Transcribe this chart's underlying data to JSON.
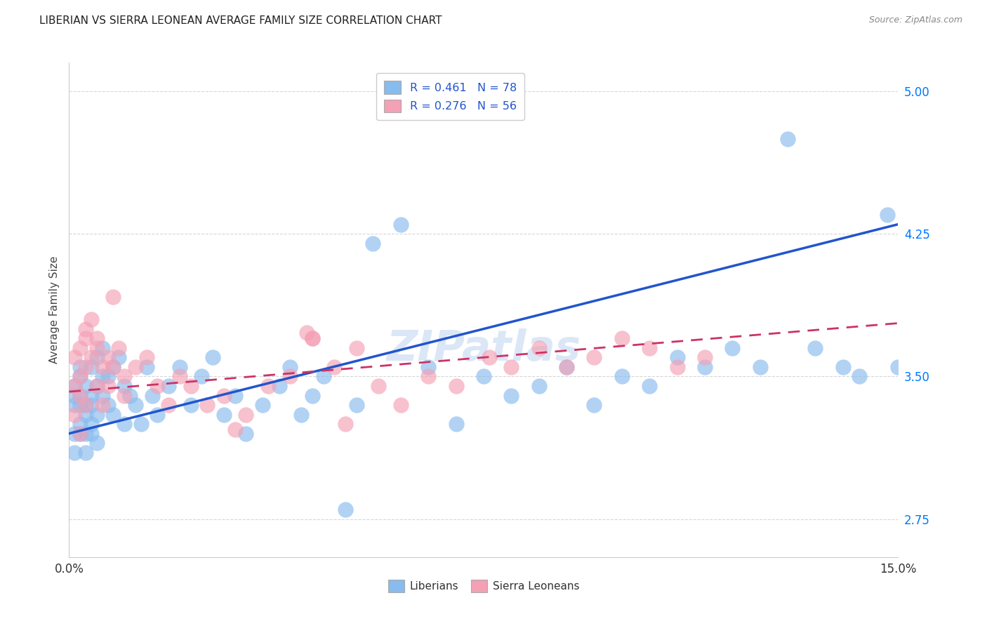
{
  "title": "LIBERIAN VS SIERRA LEONEAN AVERAGE FAMILY SIZE CORRELATION CHART",
  "source": "Source: ZipAtlas.com",
  "ylabel": "Average Family Size",
  "xlim": [
    0.0,
    0.15
  ],
  "ylim": [
    2.55,
    5.15
  ],
  "yticks": [
    2.75,
    3.5,
    4.25,
    5.0
  ],
  "ytick_color": "#0077ff",
  "watermark": "ZIPatlas",
  "liberian_color": "#88bbee",
  "sierra_leonean_color": "#f4a0b5",
  "line_liberian_color": "#2255cc",
  "line_sierra_leonean_color": "#cc3366",
  "background_color": "#ffffff",
  "grid_color": "#cccccc",
  "title_fontsize": 11,
  "label_fontsize": 10,
  "tick_fontsize": 10,
  "lib_line_x0": 0.0,
  "lib_line_y0": 3.2,
  "lib_line_x1": 0.15,
  "lib_line_y1": 4.3,
  "sier_line_x0": 0.0,
  "sier_line_y0": 3.42,
  "sier_line_x1": 0.15,
  "sier_line_y1": 3.78,
  "liberian_x": [
    0.001,
    0.001,
    0.001,
    0.001,
    0.001,
    0.002,
    0.002,
    0.002,
    0.002,
    0.002,
    0.002,
    0.003,
    0.003,
    0.003,
    0.003,
    0.003,
    0.004,
    0.004,
    0.004,
    0.004,
    0.004,
    0.005,
    0.005,
    0.005,
    0.005,
    0.006,
    0.006,
    0.006,
    0.007,
    0.007,
    0.008,
    0.008,
    0.009,
    0.01,
    0.01,
    0.011,
    0.012,
    0.013,
    0.014,
    0.015,
    0.016,
    0.018,
    0.02,
    0.022,
    0.024,
    0.026,
    0.028,
    0.03,
    0.032,
    0.035,
    0.038,
    0.04,
    0.042,
    0.044,
    0.046,
    0.05,
    0.052,
    0.055,
    0.06,
    0.065,
    0.07,
    0.075,
    0.08,
    0.085,
    0.09,
    0.095,
    0.1,
    0.105,
    0.11,
    0.115,
    0.12,
    0.125,
    0.13,
    0.135,
    0.14,
    0.143,
    0.148,
    0.15
  ],
  "liberian_y": [
    3.35,
    3.2,
    3.4,
    3.1,
    3.45,
    3.25,
    3.35,
    3.5,
    3.2,
    3.4,
    3.55,
    3.3,
    3.45,
    3.2,
    3.35,
    3.1,
    3.25,
    3.35,
    3.2,
    3.4,
    3.55,
    3.3,
    3.15,
    3.45,
    3.6,
    3.5,
    3.4,
    3.65,
    3.35,
    3.5,
    3.55,
    3.3,
    3.6,
    3.25,
    3.45,
    3.4,
    3.35,
    3.25,
    3.55,
    3.4,
    3.3,
    3.45,
    3.55,
    3.35,
    3.5,
    3.6,
    3.3,
    3.4,
    3.2,
    3.35,
    3.45,
    3.55,
    3.3,
    3.4,
    3.5,
    2.8,
    3.35,
    4.2,
    4.3,
    3.55,
    3.25,
    3.5,
    3.4,
    3.45,
    3.55,
    3.35,
    3.5,
    3.45,
    3.6,
    3.55,
    3.65,
    3.55,
    4.75,
    3.65,
    3.55,
    3.5,
    4.35,
    3.55
  ],
  "sierra_leonean_x": [
    0.001,
    0.001,
    0.001,
    0.002,
    0.002,
    0.002,
    0.002,
    0.003,
    0.003,
    0.003,
    0.003,
    0.004,
    0.004,
    0.005,
    0.005,
    0.005,
    0.006,
    0.006,
    0.007,
    0.007,
    0.008,
    0.008,
    0.009,
    0.01,
    0.01,
    0.012,
    0.014,
    0.016,
    0.018,
    0.02,
    0.022,
    0.025,
    0.028,
    0.032,
    0.036,
    0.04,
    0.044,
    0.048,
    0.052,
    0.056,
    0.06,
    0.065,
    0.07,
    0.076,
    0.08,
    0.085,
    0.09,
    0.095,
    0.1,
    0.105,
    0.11,
    0.115,
    0.05,
    0.043,
    0.044,
    0.03
  ],
  "sierra_leonean_y": [
    3.45,
    3.3,
    3.6,
    3.5,
    3.4,
    3.65,
    3.2,
    3.55,
    3.7,
    3.35,
    3.75,
    3.6,
    3.8,
    3.65,
    3.45,
    3.7,
    3.55,
    3.35,
    3.6,
    3.45,
    3.92,
    3.55,
    3.65,
    3.5,
    3.4,
    3.55,
    3.6,
    3.45,
    3.35,
    3.5,
    3.45,
    3.35,
    3.4,
    3.3,
    3.45,
    3.5,
    3.7,
    3.55,
    3.65,
    3.45,
    3.35,
    3.5,
    3.45,
    3.6,
    3.55,
    3.65,
    3.55,
    3.6,
    3.7,
    3.65,
    3.55,
    3.6,
    3.25,
    3.73,
    3.7,
    3.22
  ]
}
